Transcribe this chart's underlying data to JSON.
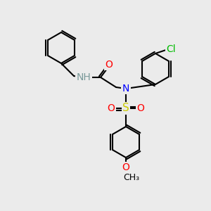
{
  "bg_color": "#ebebeb",
  "bond_color": "#000000",
  "bond_width": 1.5,
  "atom_colors": {
    "N": "#0000ff",
    "O": "#ff0000",
    "Cl": "#00bb00",
    "S": "#cccc00",
    "H": "#7a9a9a",
    "C": "#000000"
  },
  "font_size": 9,
  "figsize": [
    3.0,
    3.0
  ],
  "dpi": 100
}
